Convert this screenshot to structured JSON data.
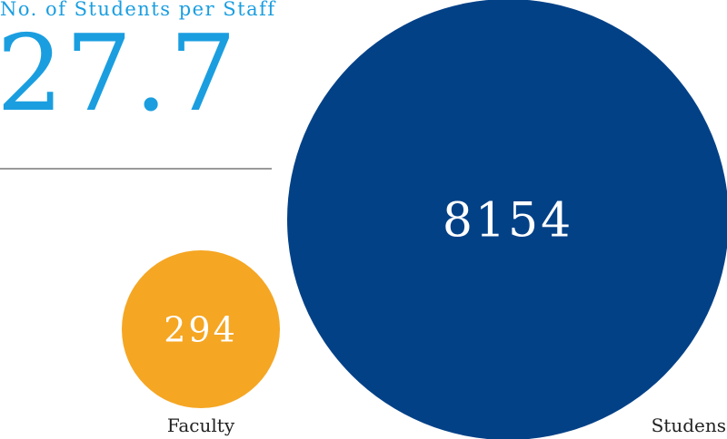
{
  "header": {
    "title": "No. of Students per Staff",
    "ratio_value": "27.7"
  },
  "colors": {
    "accent": "#1a9ee0",
    "faculty": "#f5a623",
    "students": "#034187",
    "divider": "#9a9a9a"
  },
  "chart_data": {
    "type": "bubble",
    "title": "No. of Students per Staff",
    "categories": [
      "Faculty",
      "Studens"
    ],
    "values": [
      294,
      8154
    ],
    "value_labels": [
      "294",
      "8154"
    ],
    "colors": [
      "#f5a623",
      "#034187"
    ]
  }
}
